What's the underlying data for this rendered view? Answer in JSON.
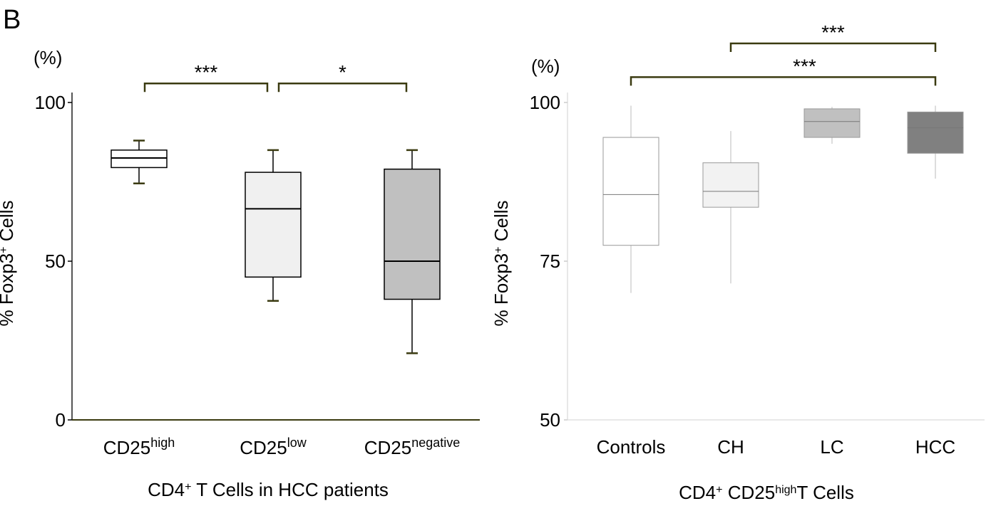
{
  "panel_label": "B",
  "chart_data": [
    {
      "type": "box",
      "ylabel_pre": "% Foxp3",
      "ylabel_sup": "+",
      "ylabel_post": " Cells",
      "unit_label": "(%)",
      "ylim": [
        0,
        100
      ],
      "yticks": [
        0,
        50,
        100
      ],
      "xlabel": {
        "pre": "CD4",
        "sup": "+",
        "post": " T Cells in HCC patients"
      },
      "categories": [
        {
          "base": "CD25",
          "sup": "high"
        },
        {
          "base": "CD25",
          "sup": "low"
        },
        {
          "base": "CD25",
          "sup": "negative"
        }
      ],
      "boxes": [
        {
          "min": 74.5,
          "q1": 79.5,
          "median": 82.5,
          "q3": 85,
          "max": 88,
          "fill": "#ffffff"
        },
        {
          "min": 37.5,
          "q1": 45,
          "median": 66.5,
          "q3": 78,
          "max": 85,
          "fill": "#f0f0f0"
        },
        {
          "min": 21,
          "q1": 38,
          "median": 50,
          "q3": 79,
          "max": 85,
          "fill": "#c0c0c0"
        }
      ],
      "significance": [
        {
          "from": 0,
          "to": 1,
          "label": "***",
          "y": 106
        },
        {
          "from": 1,
          "to": 2,
          "label": "*",
          "y": 106
        }
      ]
    },
    {
      "type": "box",
      "ylabel_pre": "% Foxp3",
      "ylabel_sup": "+",
      "ylabel_post": " Cells",
      "unit_label": "(%)",
      "ylim": [
        50,
        100
      ],
      "yticks": [
        50,
        75,
        100
      ],
      "xlabel": {
        "pre": "CD4",
        "sup": "+",
        "post": " CD25",
        "sup2": "high",
        "post2": "T Cells"
      },
      "categories": [
        {
          "base": "Controls",
          "sup": ""
        },
        {
          "base": "CH",
          "sup": ""
        },
        {
          "base": "LC",
          "sup": ""
        },
        {
          "base": "HCC",
          "sup": ""
        }
      ],
      "boxes": [
        {
          "min": 70,
          "q1": 77.5,
          "median": 85.5,
          "q3": 94.5,
          "max": 99.5,
          "fill": "#ffffff"
        },
        {
          "min": 71.5,
          "q1": 83.5,
          "median": 86,
          "q3": 90.5,
          "max": 95.5,
          "fill": "#f2f2f2"
        },
        {
          "min": 93.5,
          "q1": 94.5,
          "median": 97,
          "q3": 99,
          "max": 99.3,
          "fill": "#c0c0c0"
        },
        {
          "min": 88,
          "q1": 92,
          "median": 96,
          "q3": 98.5,
          "max": 99.5,
          "fill": "#808080"
        }
      ],
      "significance": [
        {
          "from": 1,
          "to": 3,
          "label": "***",
          "y": 109.3
        },
        {
          "from": 0,
          "to": 3,
          "label": "***",
          "y": 104
        }
      ]
    }
  ]
}
